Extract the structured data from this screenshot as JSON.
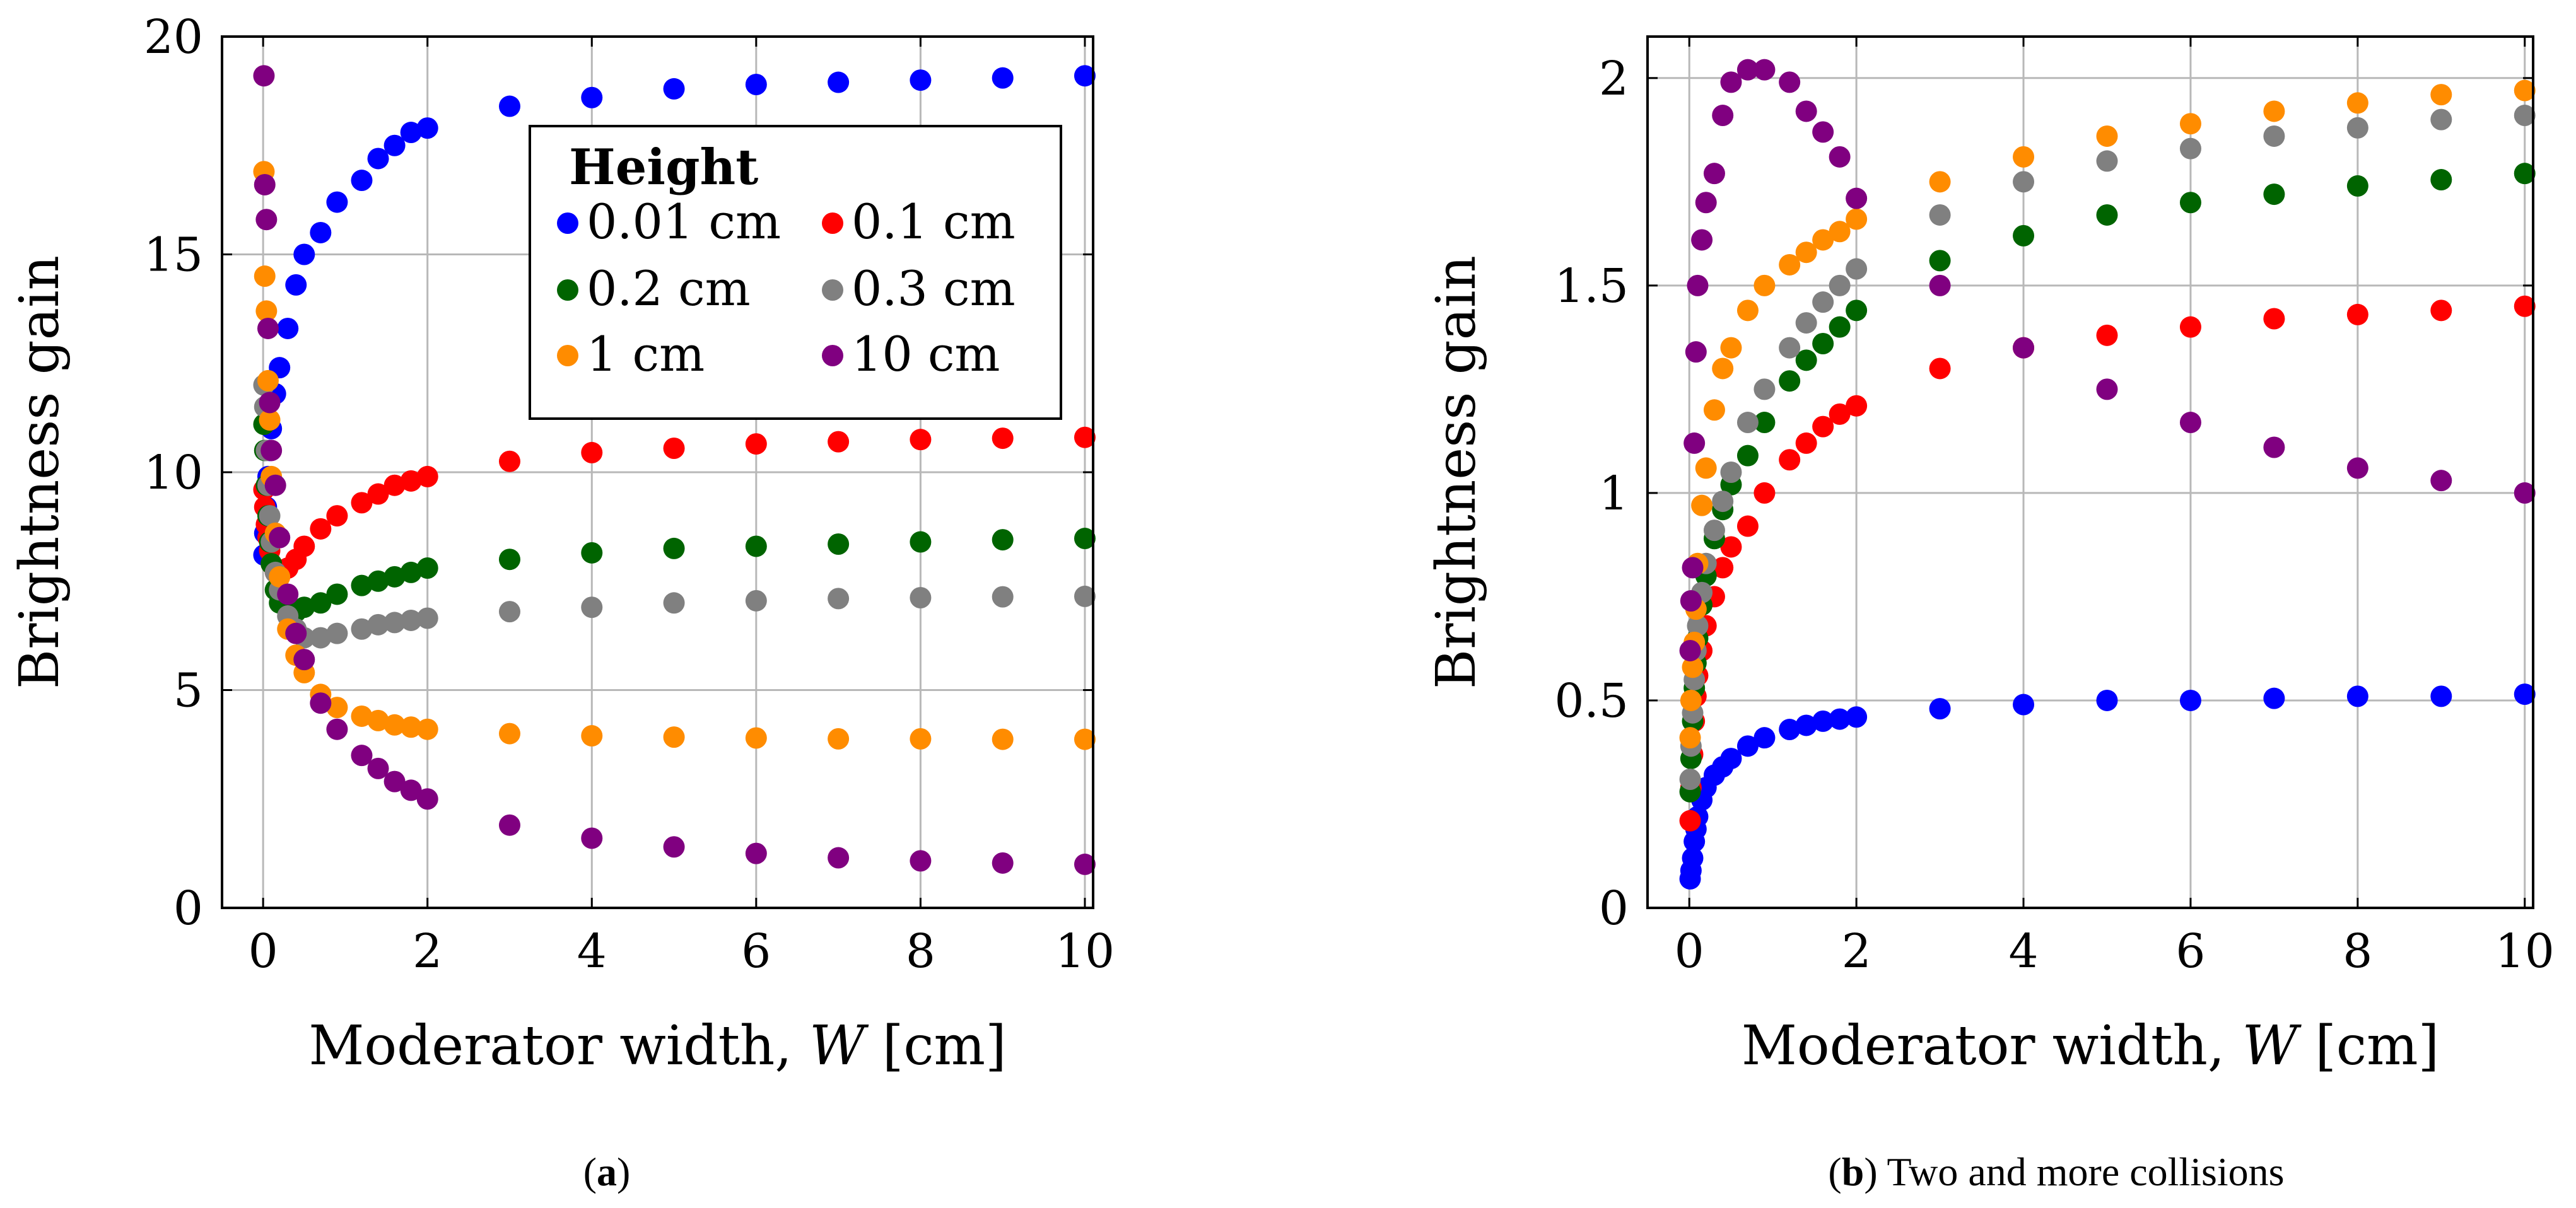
{
  "figure": {
    "panel_a_caption": {
      "letter": "a"
    },
    "panel_b_caption": {
      "letter": "b",
      "text": " Two and more collisions"
    }
  },
  "colors": {
    "0.01 cm": "#0000ff",
    "0.1 cm": "#ff0000",
    "0.2 cm": "#006400",
    "0.3 cm": "#808080",
    "1 cm": "#ff8c00",
    "10 cm": "#800080"
  },
  "chart_data": [
    {
      "type": "scatter",
      "id": "a",
      "xlabel_prefix": "Moderator width, ",
      "xlabel_var": "W",
      "xlabel_unit": " [cm]",
      "ylabel": "Brightness gain",
      "xlim": [
        -0.5,
        10.1
      ],
      "ylim": [
        0,
        20
      ],
      "xticks": [
        0,
        2,
        4,
        6,
        8,
        10
      ],
      "yticks": [
        0,
        5,
        10,
        15,
        20
      ],
      "grid": true,
      "x": [
        0.01,
        0.02,
        0.04,
        0.06,
        0.08,
        0.1,
        0.15,
        0.2,
        0.3,
        0.4,
        0.5,
        0.7,
        0.9,
        1.2,
        1.4,
        1.6,
        1.8,
        2,
        3,
        4,
        5,
        6,
        7,
        8,
        9,
        10
      ],
      "legend": {
        "title": "Height",
        "position": "top-right",
        "columns": 2
      },
      "series": [
        {
          "name": "0.01 cm",
          "values": [
            8.1,
            8.6,
            9.2,
            9.9,
            10.5,
            11.0,
            11.8,
            12.4,
            13.3,
            14.3,
            15.0,
            15.5,
            16.2,
            16.7,
            17.2,
            17.5,
            17.8,
            17.9,
            18.4,
            18.6,
            18.8,
            18.9,
            18.95,
            19.0,
            19.05,
            19.1
          ]
        },
        {
          "name": "0.1 cm",
          "values": [
            9.6,
            9.2,
            8.8,
            8.5,
            8.2,
            7.9,
            7.7,
            7.6,
            7.8,
            8.0,
            8.3,
            8.7,
            9.0,
            9.3,
            9.5,
            9.7,
            9.8,
            9.9,
            10.25,
            10.45,
            10.55,
            10.65,
            10.7,
            10.75,
            10.78,
            10.8
          ]
        },
        {
          "name": "0.2 cm",
          "values": [
            11.1,
            10.5,
            9.7,
            9.0,
            8.4,
            7.9,
            7.3,
            7.0,
            6.9,
            6.8,
            6.9,
            7.0,
            7.2,
            7.4,
            7.5,
            7.6,
            7.7,
            7.8,
            8.0,
            8.15,
            8.25,
            8.3,
            8.35,
            8.4,
            8.45,
            8.48
          ]
        },
        {
          "name": "0.3 cm",
          "values": [
            12.0,
            11.5,
            10.5,
            9.7,
            9.0,
            8.4,
            7.7,
            7.3,
            6.7,
            6.4,
            6.2,
            6.2,
            6.3,
            6.4,
            6.5,
            6.55,
            6.6,
            6.65,
            6.8,
            6.9,
            7.0,
            7.05,
            7.1,
            7.12,
            7.14,
            7.15
          ]
        },
        {
          "name": "1 cm",
          "values": [
            16.9,
            14.5,
            13.7,
            12.1,
            11.2,
            9.9,
            8.6,
            7.6,
            6.4,
            5.8,
            5.4,
            4.9,
            4.6,
            4.4,
            4.3,
            4.2,
            4.15,
            4.1,
            4.0,
            3.95,
            3.92,
            3.9,
            3.88,
            3.88,
            3.87,
            3.87
          ]
        },
        {
          "name": "10 cm",
          "values": [
            19.1,
            16.6,
            15.8,
            13.3,
            11.6,
            10.5,
            9.7,
            8.5,
            7.2,
            6.3,
            5.7,
            4.7,
            4.1,
            3.5,
            3.2,
            2.9,
            2.7,
            2.5,
            1.9,
            1.6,
            1.4,
            1.25,
            1.15,
            1.08,
            1.03,
            1.0
          ]
        }
      ]
    },
    {
      "type": "scatter",
      "id": "b",
      "xlabel_prefix": "Moderator width, ",
      "xlabel_var": "W",
      "xlabel_unit": " [cm]",
      "ylabel": "Brightness gain",
      "xlim": [
        -0.5,
        10.1
      ],
      "ylim": [
        0,
        2.1
      ],
      "xticks": [
        0,
        2,
        4,
        6,
        8,
        10
      ],
      "yticks": [
        0,
        0.5,
        1,
        1.5,
        2
      ],
      "grid": true,
      "x": [
        0.01,
        0.02,
        0.04,
        0.06,
        0.08,
        0.1,
        0.15,
        0.2,
        0.3,
        0.4,
        0.5,
        0.7,
        0.9,
        1.2,
        1.4,
        1.6,
        1.8,
        2,
        3,
        4,
        5,
        6,
        7,
        8,
        9,
        10
      ],
      "series": [
        {
          "name": "0.01 cm",
          "values": [
            0.07,
            0.09,
            0.12,
            0.16,
            0.19,
            0.22,
            0.26,
            0.29,
            0.32,
            0.34,
            0.36,
            0.39,
            0.41,
            0.43,
            0.44,
            0.45,
            0.455,
            0.46,
            0.48,
            0.49,
            0.5,
            0.5,
            0.505,
            0.51,
            0.51,
            0.515
          ]
        },
        {
          "name": "0.1 cm",
          "values": [
            0.21,
            0.29,
            0.37,
            0.45,
            0.51,
            0.56,
            0.62,
            0.68,
            0.75,
            0.82,
            0.87,
            0.92,
            1.0,
            1.08,
            1.12,
            1.16,
            1.19,
            1.21,
            1.3,
            1.35,
            1.38,
            1.4,
            1.42,
            1.43,
            1.44,
            1.45
          ]
        },
        {
          "name": "0.2 cm",
          "values": [
            0.28,
            0.36,
            0.45,
            0.53,
            0.59,
            0.65,
            0.73,
            0.8,
            0.89,
            0.96,
            1.02,
            1.09,
            1.17,
            1.27,
            1.32,
            1.36,
            1.4,
            1.44,
            1.56,
            1.62,
            1.67,
            1.7,
            1.72,
            1.74,
            1.755,
            1.77
          ]
        },
        {
          "name": "0.3 cm",
          "values": [
            0.31,
            0.39,
            0.47,
            0.55,
            0.62,
            0.68,
            0.76,
            0.83,
            0.91,
            0.98,
            1.05,
            1.17,
            1.25,
            1.35,
            1.41,
            1.46,
            1.5,
            1.54,
            1.67,
            1.75,
            1.8,
            1.83,
            1.86,
            1.88,
            1.9,
            1.91
          ]
        },
        {
          "name": "1 cm",
          "values": [
            0.41,
            0.5,
            0.58,
            0.64,
            0.72,
            0.83,
            0.97,
            1.06,
            1.2,
            1.3,
            1.35,
            1.44,
            1.5,
            1.55,
            1.58,
            1.61,
            1.63,
            1.66,
            1.75,
            1.81,
            1.86,
            1.89,
            1.92,
            1.94,
            1.96,
            1.97
          ]
        },
        {
          "name": "10 cm",
          "values": [
            0.62,
            0.74,
            0.82,
            1.12,
            1.34,
            1.5,
            1.61,
            1.7,
            1.77,
            1.91,
            1.99,
            2.02,
            2.02,
            1.99,
            1.92,
            1.87,
            1.81,
            1.71,
            1.5,
            1.35,
            1.25,
            1.17,
            1.11,
            1.06,
            1.03,
            1.0
          ]
        }
      ]
    }
  ]
}
